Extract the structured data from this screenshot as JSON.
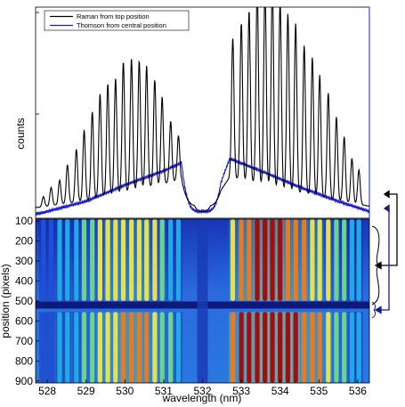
{
  "chart_data": [
    {
      "type": "line",
      "panel": "top",
      "ylabel": "counts",
      "legend": {
        "placement": "top-left"
      },
      "x_range": [
        527.7,
        536.3
      ],
      "grid": false,
      "y_ticks_labeled": false,
      "series": [
        {
          "name": "Raman from top position",
          "color": "#000000",
          "line_peaks": [
            {
              "x": 527.9,
              "y": 0.05
            },
            {
              "x": 528.1,
              "y": 0.09
            },
            {
              "x": 528.32,
              "y": 0.12
            },
            {
              "x": 528.52,
              "y": 0.19
            },
            {
              "x": 528.75,
              "y": 0.26
            },
            {
              "x": 528.95,
              "y": 0.35
            },
            {
              "x": 529.16,
              "y": 0.43
            },
            {
              "x": 529.36,
              "y": 0.51
            },
            {
              "x": 529.56,
              "y": 0.55
            },
            {
              "x": 529.76,
              "y": 0.57
            },
            {
              "x": 529.96,
              "y": 0.64
            },
            {
              "x": 530.17,
              "y": 0.65
            },
            {
              "x": 530.37,
              "y": 0.63
            },
            {
              "x": 530.56,
              "y": 0.6
            },
            {
              "x": 530.77,
              "y": 0.52
            },
            {
              "x": 530.96,
              "y": 0.43
            },
            {
              "x": 531.18,
              "y": 0.3
            },
            {
              "x": 531.38,
              "y": 0.22
            },
            {
              "x": 532.78,
              "y": 0.69
            },
            {
              "x": 533.0,
              "y": 0.77
            },
            {
              "x": 533.2,
              "y": 0.84
            },
            {
              "x": 533.41,
              "y": 0.96
            },
            {
              "x": 533.61,
              "y": 0.98
            },
            {
              "x": 533.8,
              "y": 1.0
            },
            {
              "x": 534.0,
              "y": 0.93
            },
            {
              "x": 534.2,
              "y": 0.87
            },
            {
              "x": 534.4,
              "y": 0.83
            },
            {
              "x": 534.62,
              "y": 0.73
            },
            {
              "x": 534.83,
              "y": 0.68
            },
            {
              "x": 535.02,
              "y": 0.6
            },
            {
              "x": 535.24,
              "y": 0.52
            },
            {
              "x": 535.45,
              "y": 0.41
            },
            {
              "x": 535.65,
              "y": 0.32
            },
            {
              "x": 535.85,
              "y": 0.22
            },
            {
              "x": 536.03,
              "y": 0.17
            }
          ]
        },
        {
          "name": "Thomson from central position",
          "color": "#1a1ad6",
          "profile": [
            {
              "x": 527.8,
              "y": 0.01
            },
            {
              "x": 529.0,
              "y": 0.07
            },
            {
              "x": 530.0,
              "y": 0.15
            },
            {
              "x": 531.0,
              "y": 0.22
            },
            {
              "x": 531.7,
              "y": 0.28
            },
            {
              "x": 532.2,
              "y": 0.02
            },
            {
              "x": 532.7,
              "y": 0.28
            },
            {
              "x": 533.5,
              "y": 0.22
            },
            {
              "x": 534.5,
              "y": 0.14
            },
            {
              "x": 535.5,
              "y": 0.07
            },
            {
              "x": 536.3,
              "y": 0.02
            }
          ]
        }
      ]
    },
    {
      "type": "heatmap",
      "panel": "bottom",
      "xlabel": "wavelength (nm)",
      "ylabel": "position (pixels)",
      "x_ticks": [
        528,
        529,
        530,
        531,
        532,
        533,
        534,
        535,
        536
      ],
      "y_ticks": [
        100,
        200,
        300,
        400,
        500,
        600,
        700,
        800,
        900
      ],
      "xlim": [
        527.7,
        536.3
      ],
      "ylim": [
        90,
        910
      ],
      "dark_band_y": 520,
      "dark_band_x": 532.0,
      "colormap": [
        "#12208f",
        "#1f4fd8",
        "#20a8e8",
        "#6bd48a",
        "#e8e04a",
        "#e87a20",
        "#9c1010"
      ]
    }
  ]
}
